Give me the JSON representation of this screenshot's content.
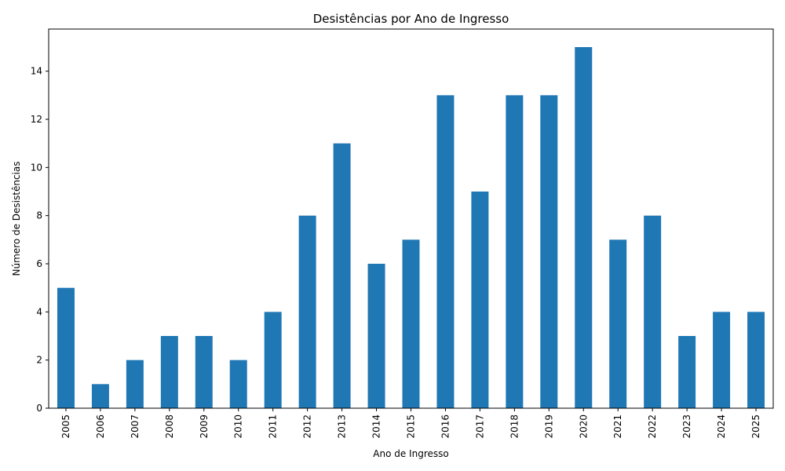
{
  "chart_data": {
    "type": "bar",
    "title": "Desistências por Ano de Ingresso",
    "xlabel": "Ano de Ingresso",
    "ylabel": "Número de Desistências",
    "categories": [
      "2005",
      "2006",
      "2007",
      "2008",
      "2009",
      "2010",
      "2011",
      "2012",
      "2013",
      "2014",
      "2015",
      "2016",
      "2017",
      "2018",
      "2019",
      "2020",
      "2021",
      "2022",
      "2023",
      "2024",
      "2025"
    ],
    "values": [
      5,
      1,
      2,
      3,
      3,
      2,
      4,
      8,
      11,
      6,
      7,
      13,
      9,
      13,
      13,
      15,
      7,
      8,
      3,
      4,
      4
    ],
    "ylim": [
      0,
      15.75
    ],
    "yticks": [
      0,
      2,
      4,
      6,
      8,
      10,
      12,
      14
    ],
    "grid": false,
    "legend": "none",
    "bar_color": "#1f77b4"
  }
}
